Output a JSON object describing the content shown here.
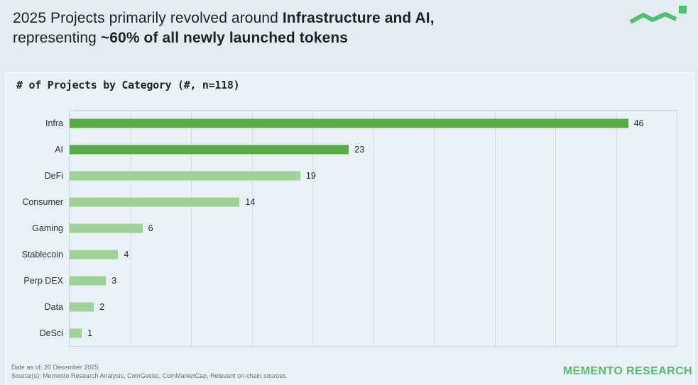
{
  "header": {
    "title_line1_regular": "2025 Projects primarily revolved around ",
    "title_line1_bold": "Infrastructure and AI,",
    "title_line2_regular": "representing ",
    "title_line2_bold": "~60% of all newly launched tokens"
  },
  "logo": {
    "color": "#4dc16e"
  },
  "chart_data": {
    "type": "bar",
    "orientation": "horizontal",
    "title": "# of Projects by Category (#, n=118)",
    "n_total": 118,
    "categories": [
      "Infra",
      "AI",
      "DeFi",
      "Consumer",
      "Gaming",
      "Stablecoin",
      "Perp DEX",
      "Data",
      "DeSci"
    ],
    "values": [
      46,
      23,
      19,
      14,
      6,
      4,
      3,
      2,
      1
    ],
    "emphasized": [
      true,
      true,
      false,
      false,
      false,
      false,
      false,
      false,
      false
    ],
    "xlim": [
      0,
      50
    ],
    "gridline_interval": 5,
    "grid": "vertical",
    "axis_tick_labels_shown": false,
    "value_labels_shown": true,
    "legend": "none",
    "colors": {
      "emphasis": "#56ab47",
      "default": "#9ed296"
    }
  },
  "footer": {
    "date_line": "Date as of: 20 December 2025",
    "source_line": "Source(s): Memento Research Analysis, CoinGecko, CoinMarketCap, Relevant on-chain sources",
    "brand": "MEMENTO RESEARCH"
  }
}
